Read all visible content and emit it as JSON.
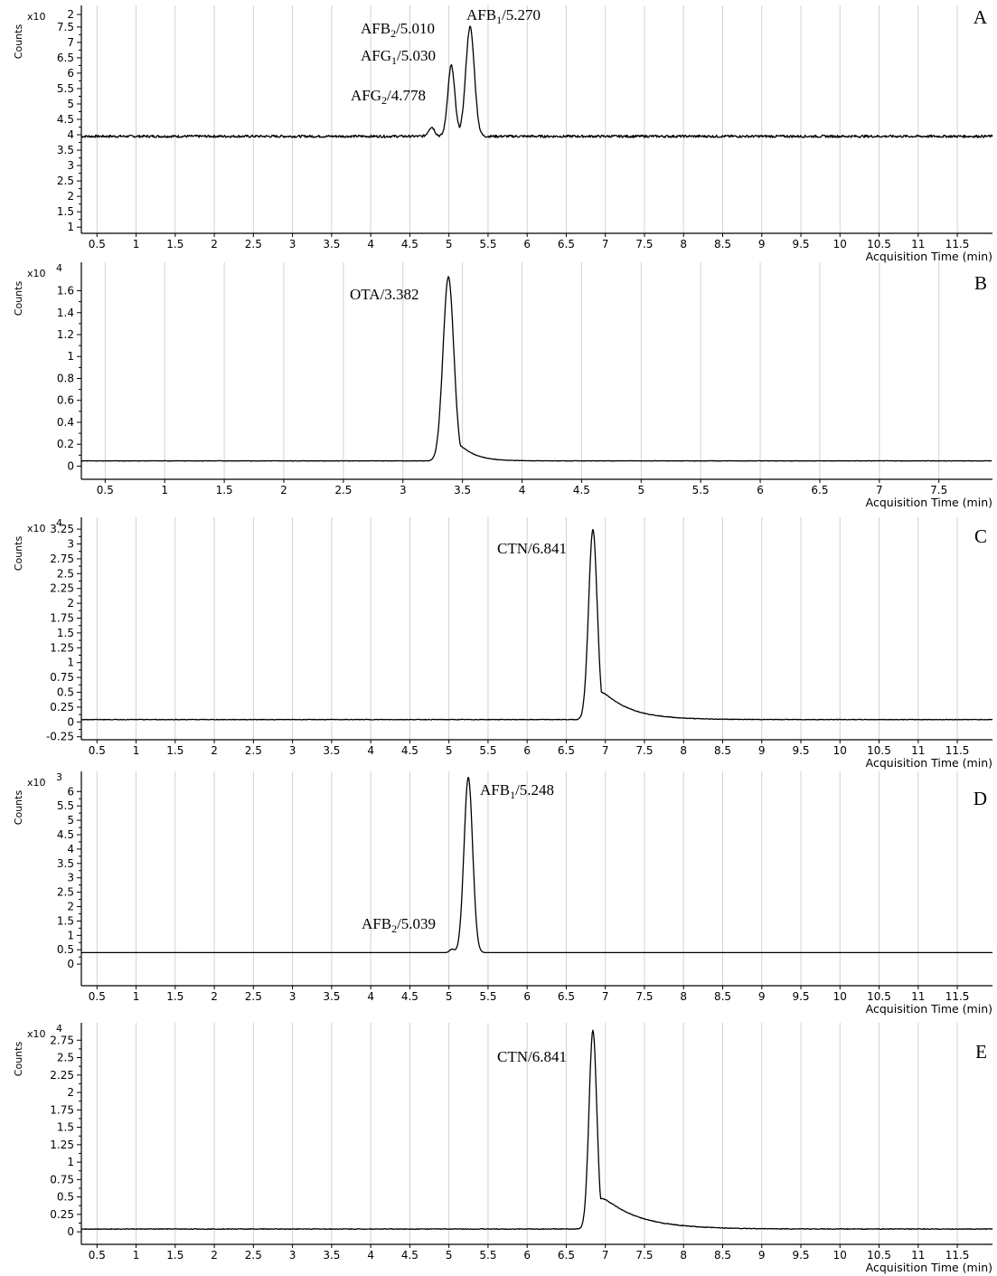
{
  "chart_data": [
    {
      "type": "line",
      "panel": "A",
      "ylabel": "Counts",
      "scale_factor": "x10",
      "exponent": "",
      "xlabel": "Acquisition Time (min)",
      "xlim": [
        0.3,
        11.95
      ],
      "xticks": [
        "0.5",
        "1",
        "1.5",
        "2",
        "2.5",
        "3",
        "3.5",
        "4",
        "4.5",
        "5",
        "5.5",
        "6",
        "6.5",
        "7",
        "7.5",
        "8",
        "8.5",
        "9",
        "9.5",
        "10",
        "10.5",
        "11",
        "11.5"
      ],
      "ylim": [
        0.8,
        8.2
      ],
      "yticks": [
        "1",
        "1.5",
        "2",
        "2.5",
        "3",
        "3.5",
        "4",
        "4.5",
        "5",
        "5.5",
        "6",
        "6.5",
        "7",
        "7.5"
      ],
      "top_tick_label": "2",
      "baseline": 3.95,
      "noise": 0.04,
      "peaks": [
        {
          "label_main": "AFG",
          "label_sub": "2",
          "label_rest": "/4.778",
          "rt": 4.778,
          "height": 0.3,
          "width": 0.04
        },
        {
          "label_main": "AFG",
          "label_sub": "1",
          "label_rest": "/5.030",
          "rt": 5.03,
          "height": 2.3,
          "width": 0.045
        },
        {
          "label_main": "AFB",
          "label_sub": "2",
          "label_rest": "/5.010",
          "rt": 5.01,
          "height": 0,
          "width": 0.04
        },
        {
          "label_main": "AFB",
          "label_sub": "1",
          "label_rest": "/5.270",
          "rt": 5.27,
          "height": 3.55,
          "width": 0.055
        }
      ]
    },
    {
      "type": "line",
      "panel": "B",
      "ylabel": "Counts",
      "scale_factor": "x10",
      "exponent": "4",
      "xlabel": "Acquisition Time (min)",
      "xlim": [
        0.3,
        7.95
      ],
      "xticks": [
        "0.5",
        "1",
        "1.5",
        "2",
        "2.5",
        "3",
        "3.5",
        "4",
        "4.5",
        "5",
        "5.5",
        "6",
        "6.5",
        "7",
        "7.5"
      ],
      "ylim": [
        -0.12,
        1.86
      ],
      "yticks": [
        "0",
        "0.2",
        "0.4",
        "0.6",
        "0.8",
        "1",
        "1.2",
        "1.4",
        "1.6"
      ],
      "baseline": 0.048,
      "noise": 0.002,
      "peaks": [
        {
          "label_main": "OTA",
          "label_sub": "",
          "label_rest": "/3.382",
          "rt": 3.382,
          "height": 1.68,
          "width": 0.045,
          "tail": 0.12
        }
      ]
    },
    {
      "type": "line",
      "panel": "C",
      "ylabel": "Counts",
      "scale_factor": "x10",
      "exponent": "4",
      "xlabel": "Acquisition Time (min)",
      "xlim": [
        0.3,
        11.95
      ],
      "xticks": [
        "0.5",
        "1",
        "1.5",
        "2",
        "2.5",
        "3",
        "3.5",
        "4",
        "4.5",
        "5",
        "5.5",
        "6",
        "6.5",
        "7",
        "7.5",
        "8",
        "8.5",
        "9",
        "9.5",
        "10",
        "10.5",
        "11",
        "11.5"
      ],
      "ylim": [
        -0.3,
        3.45
      ],
      "yticks": [
        "-0.25",
        "0",
        "0.25",
        "0.5",
        "0.75",
        "1",
        "1.25",
        "1.5",
        "1.75",
        "2",
        "2.25",
        "2.5",
        "2.75",
        "3",
        "3.25"
      ],
      "baseline": 0.04,
      "noise": 0.005,
      "peaks": [
        {
          "label_main": "CTN",
          "label_sub": "",
          "label_rest": "/6.841",
          "rt": 6.841,
          "height": 3.2,
          "width": 0.055,
          "tail": 0.35
        }
      ]
    },
    {
      "type": "line",
      "panel": "D",
      "ylabel": "Counts",
      "scale_factor": "x10",
      "exponent": "3",
      "xlabel": "Acquisition Time (min)",
      "xlim": [
        0.3,
        11.95
      ],
      "xticks": [
        "0.5",
        "1",
        "1.5",
        "2",
        "2.5",
        "3",
        "3.5",
        "4",
        "4.5",
        "5",
        "5.5",
        "6",
        "6.5",
        "7",
        "7.5",
        "8",
        "8.5",
        "9",
        "9.5",
        "10",
        "10.5",
        "11",
        "11.5"
      ],
      "ylim": [
        -0.75,
        6.7
      ],
      "yticks": [
        "0",
        "0.5",
        "1",
        "1.5",
        "2",
        "2.5",
        "3",
        "3.5",
        "4",
        "4.5",
        "5",
        "5.5",
        "6"
      ],
      "baseline": 0.4,
      "noise": 0,
      "peaks": [
        {
          "label_main": "AFB",
          "label_sub": "2",
          "label_rest": "/5.039",
          "rt": 5.039,
          "height": 0.12,
          "width": 0.03
        },
        {
          "label_main": "AFB",
          "label_sub": "1",
          "label_rest": "/5.248",
          "rt": 5.248,
          "height": 6.1,
          "width": 0.055
        }
      ]
    },
    {
      "type": "line",
      "panel": "E",
      "ylabel": "Counts",
      "scale_factor": "x10",
      "exponent": "4",
      "xlabel": "Acquisition Time (min)",
      "xlim": [
        0.3,
        11.95
      ],
      "xticks": [
        "0.5",
        "1",
        "1.5",
        "2",
        "2.5",
        "3",
        "3.5",
        "4",
        "4.5",
        "5",
        "5.5",
        "6",
        "6.5",
        "7",
        "7.5",
        "8",
        "8.5",
        "9",
        "9.5",
        "10",
        "10.5",
        "11",
        "11.5"
      ],
      "ylim": [
        -0.18,
        3.0
      ],
      "yticks": [
        "0",
        "0.25",
        "0.5",
        "0.75",
        "1",
        "1.25",
        "1.5",
        "1.75",
        "2",
        "2.25",
        "2.5",
        "2.75"
      ],
      "baseline": 0.04,
      "noise": 0.005,
      "peaks": [
        {
          "label_main": "CTN",
          "label_sub": "",
          "label_rest": "/6.841",
          "rt": 6.841,
          "height": 2.85,
          "width": 0.05,
          "tail": 0.45
        }
      ]
    }
  ]
}
